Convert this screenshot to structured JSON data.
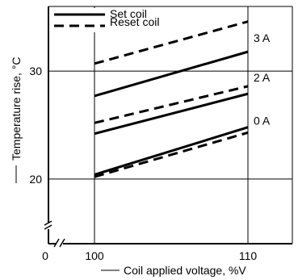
{
  "chart_data": {
    "type": "line",
    "xlabel": "Coil applied voltage, %V",
    "ylabel": "Temperature rise, °C",
    "x_ticks": [
      {
        "value": 100,
        "label": "100"
      },
      {
        "value": 110,
        "label": "110"
      }
    ],
    "x_origin_label": "0",
    "y_ticks": [
      {
        "value": 20,
        "label": "20"
      },
      {
        "value": 30,
        "label": "30"
      }
    ],
    "xlim": [
      100,
      110
    ],
    "ylim": [
      14,
      36
    ],
    "grid": true,
    "axis_break": true,
    "legend": {
      "position": "top-left",
      "entries": [
        {
          "name": "Set coil",
          "style": "solid"
        },
        {
          "name": "Reset coil",
          "style": "dashed"
        }
      ]
    },
    "series": [
      {
        "name": "Set coil",
        "current": "3 A",
        "style": "solid",
        "x": [
          100,
          110
        ],
        "y": [
          27.7,
          31.8
        ]
      },
      {
        "name": "Reset coil",
        "current": "3 A",
        "style": "dashed",
        "x": [
          100,
          110
        ],
        "y": [
          30.7,
          34.6
        ]
      },
      {
        "name": "Set coil",
        "current": "2 A",
        "style": "solid",
        "x": [
          100,
          110
        ],
        "y": [
          24.2,
          27.9
        ]
      },
      {
        "name": "Reset coil",
        "current": "2 A",
        "style": "dashed",
        "x": [
          100,
          110
        ],
        "y": [
          25.2,
          28.6
        ]
      },
      {
        "name": "Set coil",
        "current": "0 A",
        "style": "solid",
        "x": [
          100,
          110
        ],
        "y": [
          20.4,
          24.8
        ]
      },
      {
        "name": "Reset coil",
        "current": "0 A",
        "style": "dashed",
        "x": [
          100,
          110
        ],
        "y": [
          20.2,
          24.3
        ]
      }
    ],
    "annotations": [
      {
        "label": "3 A",
        "y": 33.1
      },
      {
        "label": "2 A",
        "y": 29.4
      },
      {
        "label": "0 A",
        "y": 25.4
      }
    ]
  }
}
